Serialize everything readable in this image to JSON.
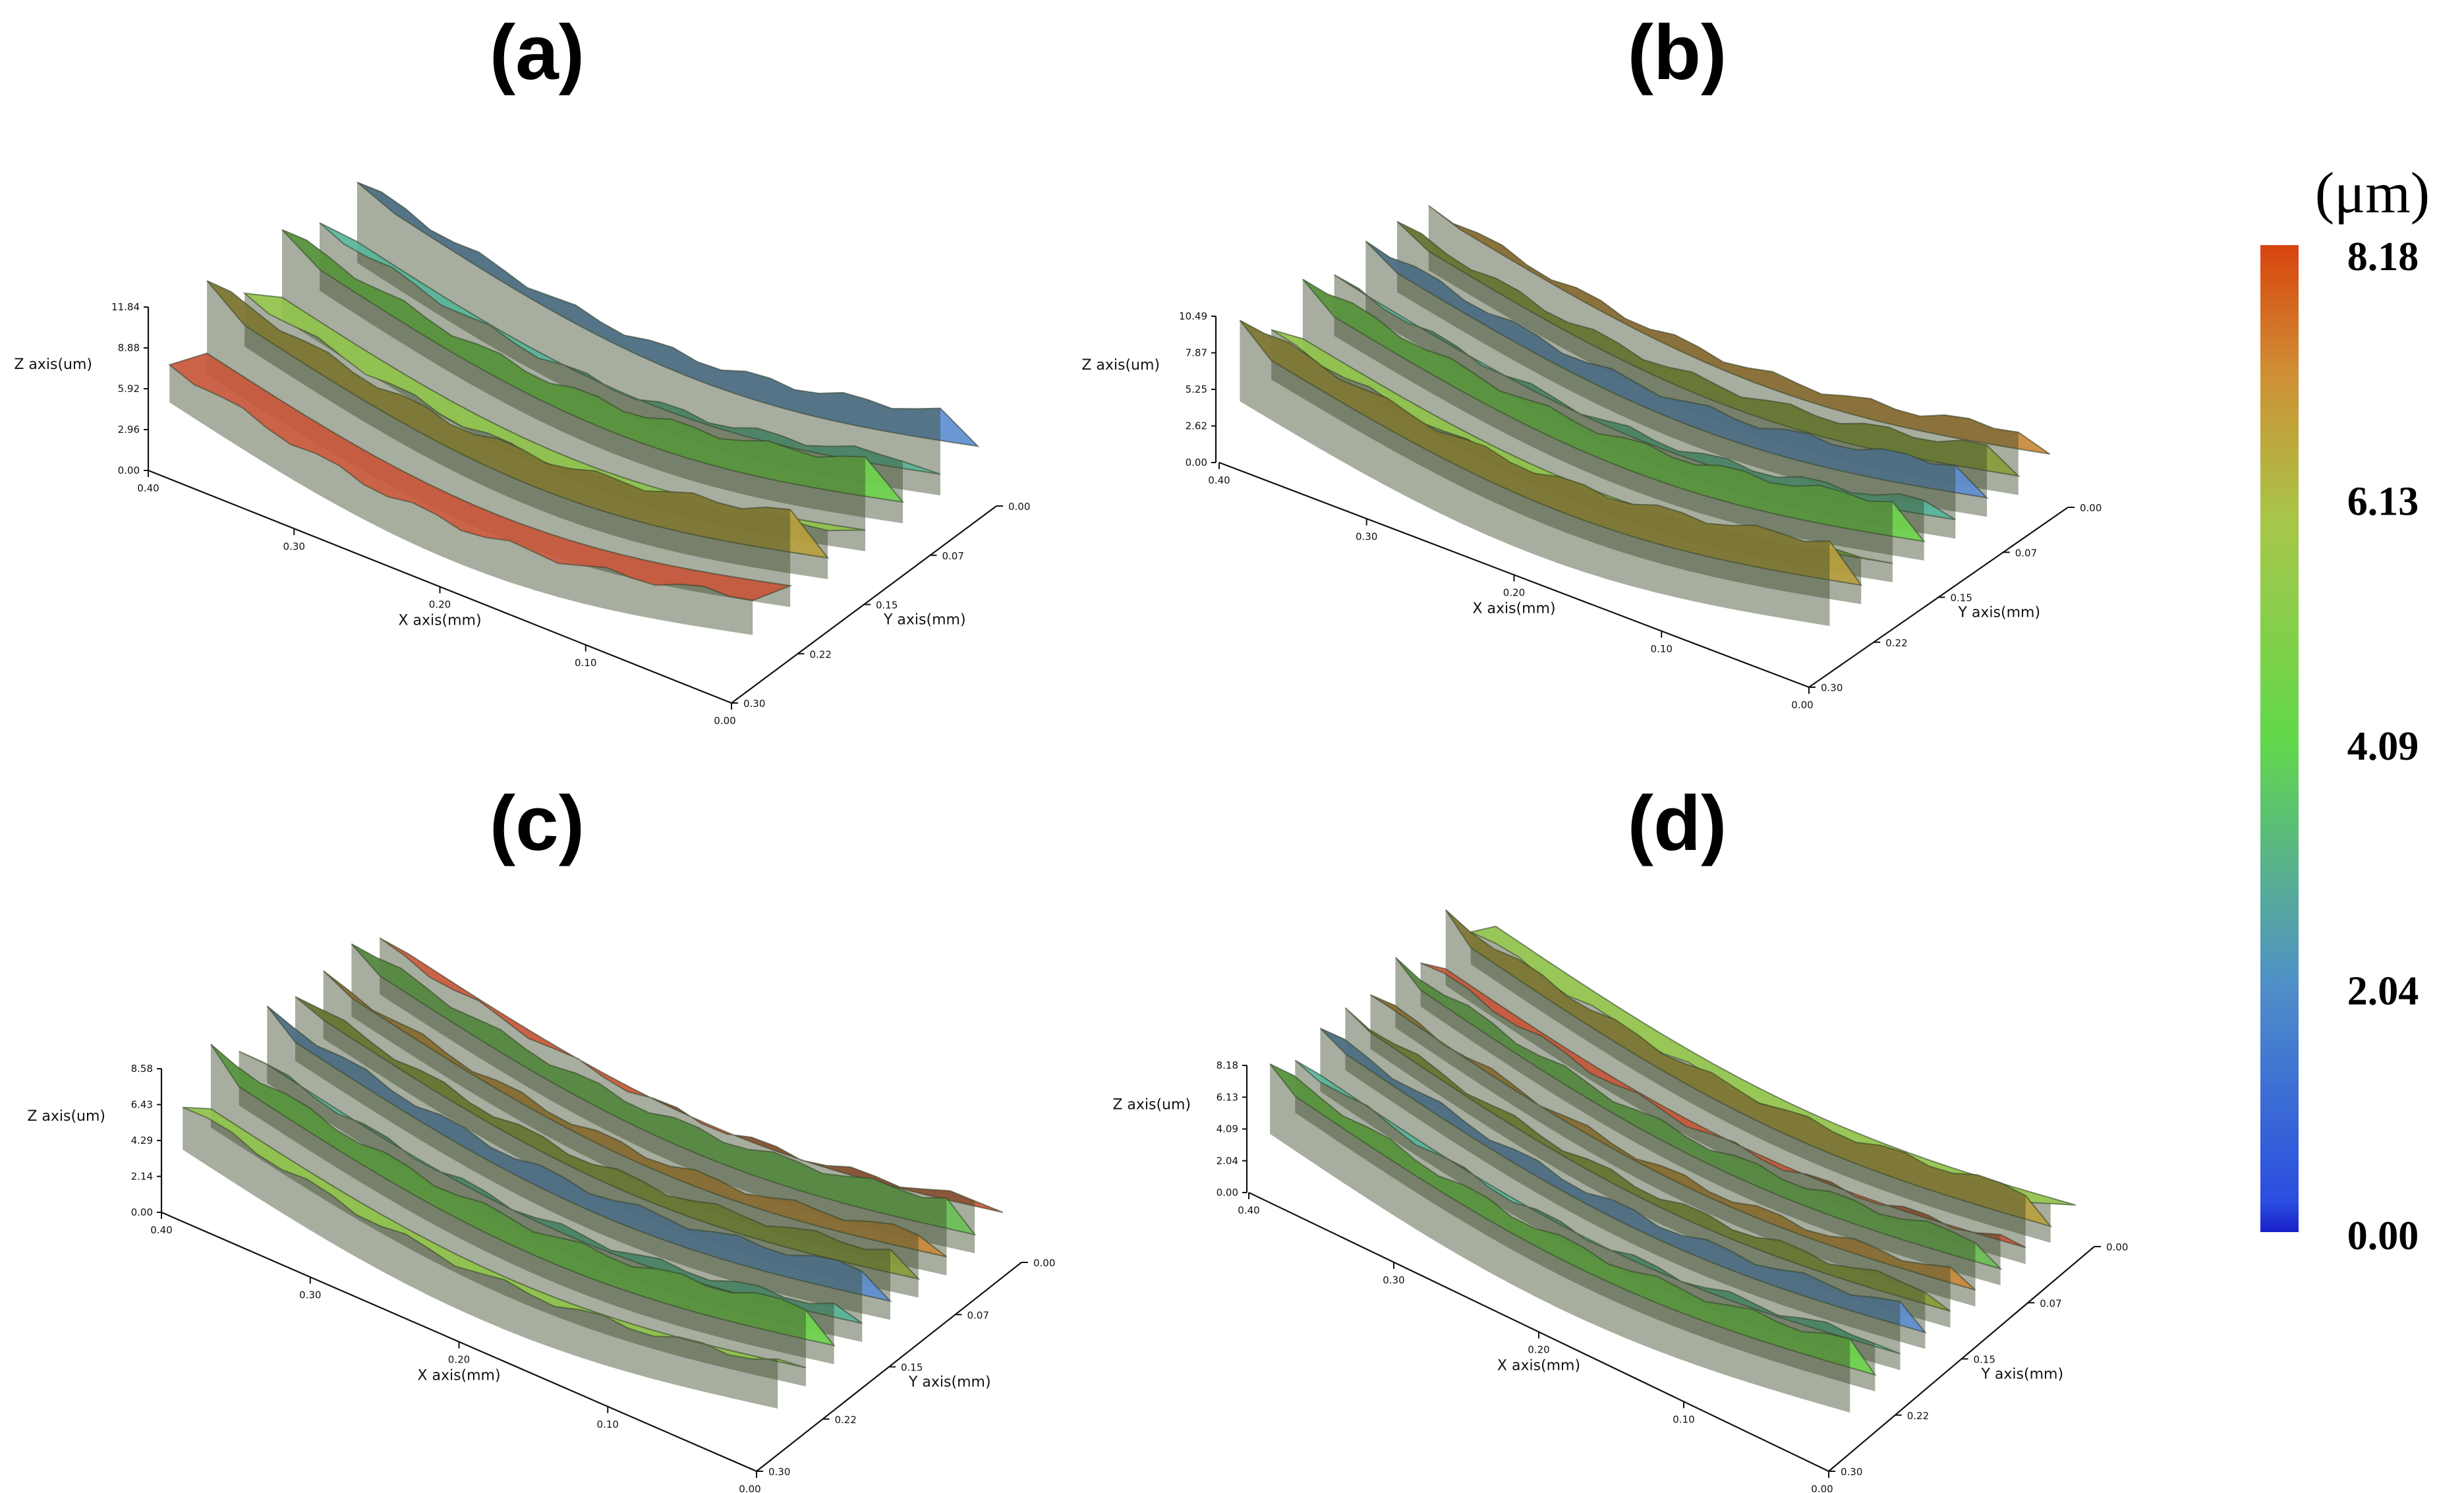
{
  "chart_data": [
    {
      "type": "surface3d",
      "panel": "(a)",
      "xlabel": "X axis(mm)",
      "ylabel": "Y axis(mm)",
      "zlabel": "Z axis(um)",
      "x_ticks": [
        "0.40",
        "0.30",
        "0.20",
        "0.10",
        "0.00"
      ],
      "y_ticks": [
        "0.00",
        "0.07",
        "0.15",
        "0.22",
        "0.30"
      ],
      "z_ticks": [
        "0.00",
        "2.96",
        "5.92",
        "8.88",
        "11.84"
      ],
      "zlim": [
        0,
        11.84
      ],
      "ridges": 6
    },
    {
      "type": "surface3d",
      "panel": "(b)",
      "xlabel": "X axis(mm)",
      "ylabel": "Y axis(mm)",
      "zlabel": "Z axis(um)",
      "x_ticks": [
        "0.40",
        "0.30",
        "0.20",
        "0.10",
        "0.00"
      ],
      "y_ticks": [
        "0.00",
        "0.07",
        "0.15",
        "0.22",
        "0.30"
      ],
      "z_ticks": [
        "0.00",
        "2.62",
        "5.25",
        "7.87",
        "10.49"
      ],
      "zlim": [
        0,
        10.49
      ],
      "ridges": 7
    },
    {
      "type": "surface3d",
      "panel": "(c)",
      "xlabel": "X axis(mm)",
      "ylabel": "Y axis(mm)",
      "zlabel": "Z axis(um)",
      "x_ticks": [
        "0.40",
        "0.30",
        "0.20",
        "0.10",
        "0.00"
      ],
      "y_ticks": [
        "0.00",
        "0.07",
        "0.15",
        "0.22",
        "0.30"
      ],
      "z_ticks": [
        "0.00",
        "2.14",
        "4.29",
        "6.43",
        "8.58"
      ],
      "zlim": [
        0,
        8.58
      ],
      "ridges": 8
    },
    {
      "type": "surface3d",
      "panel": "(d)",
      "xlabel": "X axis(mm)",
      "ylabel": "Y axis(mm)",
      "zlabel": "Z axis(um)",
      "x_ticks": [
        "0.40",
        "0.30",
        "0.20",
        "0.10",
        "0.00"
      ],
      "y_ticks": [
        "0.00",
        "0.07",
        "0.15",
        "0.22",
        "0.30"
      ],
      "z_ticks": [
        "0.00",
        "2.04",
        "4.09",
        "6.13",
        "8.18"
      ],
      "zlim": [
        0,
        8.18
      ],
      "ridges": 9
    }
  ],
  "colorbar": {
    "unit": "(μm)",
    "ticks": [
      "8.18",
      "6.13",
      "4.09",
      "2.04",
      "0.00"
    ],
    "range": [
      0,
      8.18
    ],
    "colors": [
      "#1a2fd6",
      "#3a7fd0",
      "#58d24a",
      "#c6b23a",
      "#d8440e"
    ]
  }
}
